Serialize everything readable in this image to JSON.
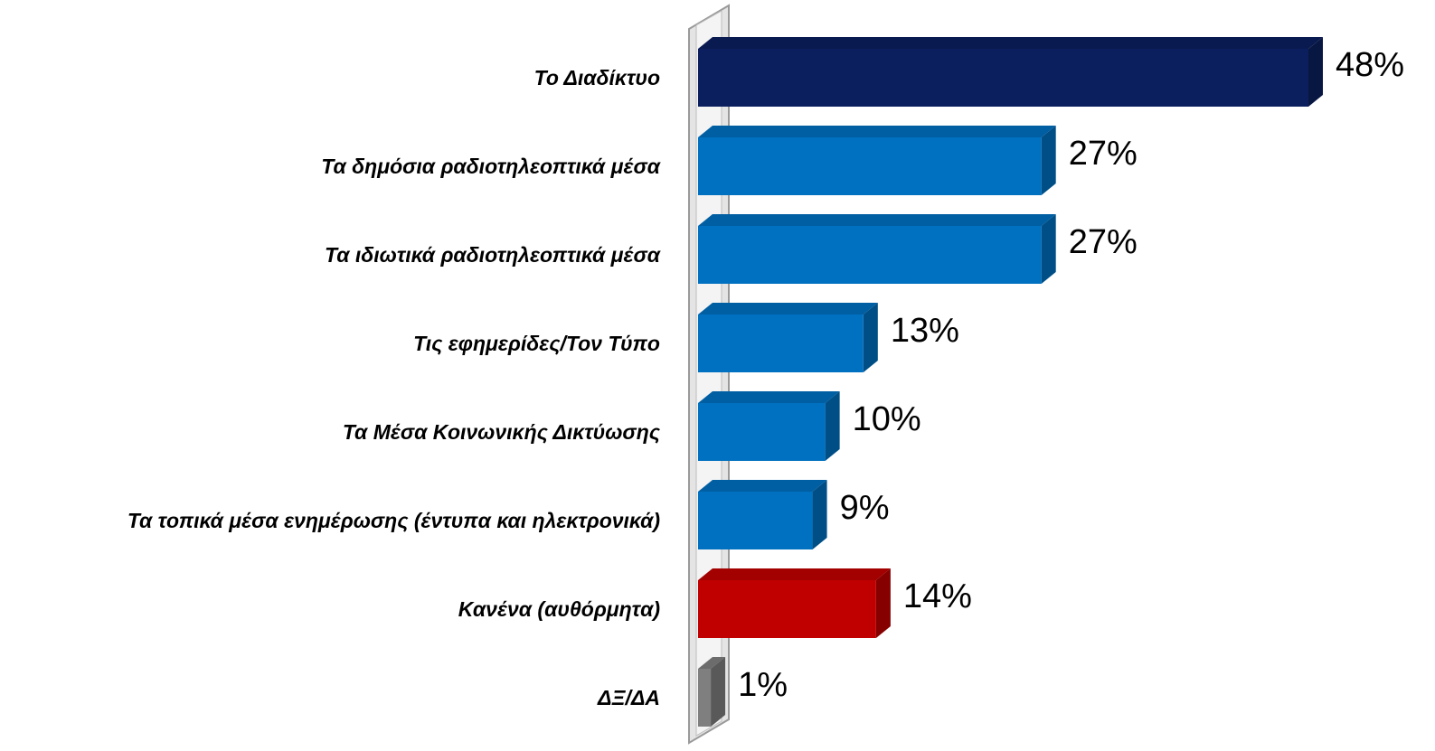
{
  "chart_data": {
    "type": "bar",
    "orientation": "horizontal",
    "categories": [
      "Το Διαδίκτυο",
      "Τα δημόσια ραδιοτηλεοπτικά μέσα",
      "Τα ιδιωτικά ραδιοτηλεοπτικά μέσα",
      "Τις εφημερίδες/Τον Τύπο",
      "Τα Μέσα Κοινωνικής Δικτύωσης",
      "Τα τοπικά μέσα ενημέρωσης (έντυπα και ηλεκτρονικά)",
      "Κανένα (αυθόρμητα)",
      "ΔΞ/ΔΑ"
    ],
    "values": [
      48,
      27,
      27,
      13,
      10,
      9,
      14,
      1
    ],
    "value_labels": [
      "48%",
      "27%",
      "27%",
      "13%",
      "10%",
      "9%",
      "14%",
      "1%"
    ],
    "colors": [
      "#0b1f5e",
      "#0070c0",
      "#0070c0",
      "#0070c0",
      "#0070c0",
      "#0070c0",
      "#c00000",
      "#7f7f7f"
    ]
  }
}
